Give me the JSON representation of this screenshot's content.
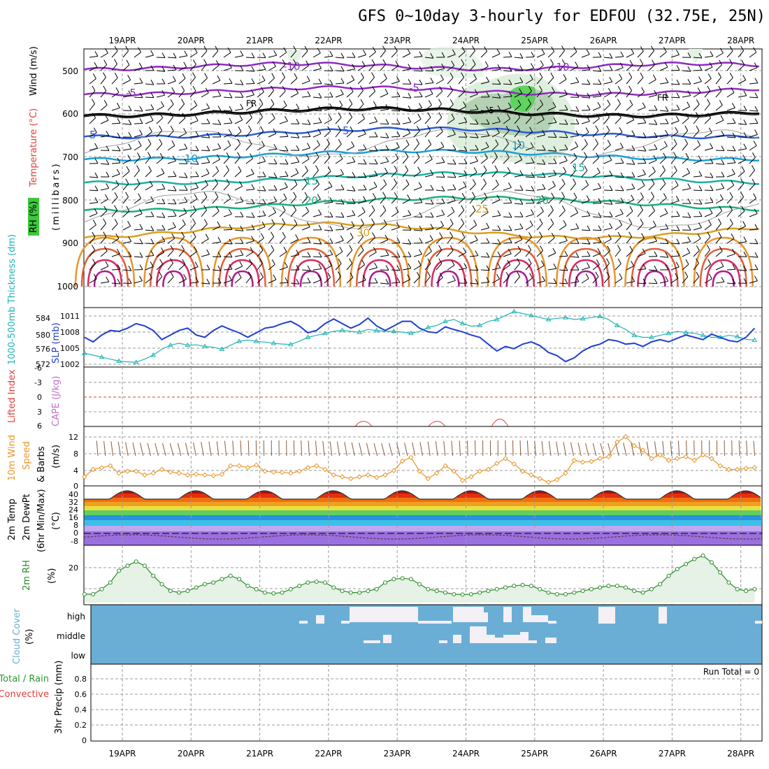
{
  "title": "GFS 0~10day 3-hourly for EDFOU (32.75E, 25N)",
  "days": [
    "19APR",
    "20APR",
    "21APR",
    "22APR",
    "23APR",
    "24APR",
    "25APR",
    "26APR",
    "27APR",
    "28APR"
  ],
  "colors": {
    "frame": "#000000",
    "grid": "#9a9a9a",
    "slp": "#1f3fd0",
    "thick": "#22b3b3",
    "wind10": "#e8962a",
    "rh": "#2a8a2a",
    "cloudBlue": "#6aaed6",
    "cloudWhite": "#f4f0f6"
  },
  "panels": {
    "upper": {
      "labels": {
        "rh": "RH (%)",
        "temp": "Temperature (°C)",
        "wind": "Wind (m/s)",
        "units": "(millibars)"
      },
      "yticks": [
        "500",
        "600",
        "700",
        "800",
        "900",
        "1000"
      ],
      "contour_labels": [
        "-10",
        "-10",
        "-5",
        "-5",
        "FR",
        "FR",
        "-5",
        "5",
        "5",
        "10",
        "10",
        "15",
        "15",
        "20",
        "20",
        "25",
        "30"
      ]
    },
    "slp": {
      "labels": {
        "thickness": "1000-500mb Thickness (dm)",
        "slp": "SLP (mb)"
      },
      "left_ticks": [
        "584",
        "580",
        "576",
        "572"
      ],
      "right_ticks": [
        "1011",
        "1008",
        "1005",
        "1002"
      ]
    },
    "cape": {
      "labels": {
        "li": "Lifted Index",
        "cape": "CAPE (J/kg)"
      },
      "ticks": [
        "-6",
        "-3",
        "0",
        "3",
        "6"
      ]
    },
    "wind10": {
      "labels": {
        "a": "10m Wind",
        "b": "Speed",
        "c": "& Barbs",
        "units": "(m/s)"
      },
      "ticks": [
        "12",
        "8",
        "4",
        "0"
      ]
    },
    "temp2m": {
      "labels": {
        "a": "2m Temp",
        "b": "2m DewPt",
        "c": "(6hr Min/Max)",
        "units": "(°C)"
      },
      "ticks": [
        "40",
        "32",
        "24",
        "16",
        "8",
        "0",
        "-8"
      ]
    },
    "rh2m": {
      "labels": {
        "a": "2m RH",
        "units": "(%)"
      },
      "ticks": [
        "20"
      ]
    },
    "cloud": {
      "labels": {
        "a": "Cloud Cover",
        "units": "(%)"
      },
      "levels": [
        "high",
        "middle",
        "low"
      ]
    },
    "precip": {
      "labels": {
        "a": "Total / Rain",
        "b": "Convective",
        "c": "3hr Precip (mm)"
      },
      "run_total": "Run Total = 0",
      "ticks": [
        "0.8",
        "0.6",
        "0.4",
        "0.2",
        "0"
      ]
    }
  },
  "chart_data": [
    {
      "type": "line",
      "name": "SLP",
      "ylabel": "SLP (mb)",
      "ylim": [
        1001,
        1014
      ],
      "x_start_day": 18.45,
      "step_hours": 3,
      "values": [
        1007.5,
        1006.5,
        1008,
        1009,
        1008.8,
        1009.5,
        1010.5,
        1010,
        1009,
        1007,
        1008,
        1009,
        1009.5,
        1008,
        1007.5,
        1009,
        1010,
        1009.2,
        1008.5,
        1007.5,
        1008.5,
        1009.5,
        1009.8,
        1010.5,
        1011,
        1010,
        1008.5,
        1009,
        1010.5,
        1011.5,
        1010.5,
        1009.5,
        1010.3,
        1011.7,
        1010,
        1009,
        1010,
        1011,
        1011,
        1009.5,
        1008.7,
        1008.5,
        1009.8,
        1009.2,
        1008.7,
        1008,
        1007.5,
        1006,
        1004.5,
        1005.5,
        1005,
        1006,
        1006.5,
        1005.7,
        1004.2,
        1003.5,
        1002.2,
        1003,
        1004.5,
        1005.5,
        1006,
        1007,
        1006.7,
        1006,
        1006.2,
        1005.5,
        1006.5,
        1007,
        1006.5,
        1007.3,
        1008,
        1007.5,
        1007,
        1008.2,
        1007.5,
        1006.8,
        1006.5,
        1007.5,
        1009.5,
        1009,
        1007.8,
        1007.4,
        1008,
        1008.6,
        1007.5,
        1007,
        1006.8,
        1007.5,
        1008.5,
        1009.2,
        1009.5
      ]
    },
    {
      "type": "line",
      "name": "1000-500mb Thickness",
      "ylabel": "Thickness (dm)",
      "ylim": [
        571,
        586
      ],
      "x_start_day": 18.45,
      "step_hours": 3,
      "values": [
        574.5,
        574,
        573.5,
        573,
        572.5,
        572.3,
        572.2,
        573,
        574,
        575.5,
        576.5,
        577,
        576.5,
        576.6,
        576.2,
        576,
        575.5,
        576.5,
        577.5,
        577.8,
        577.5,
        577.3,
        577,
        576.8,
        576.7,
        577.5,
        578.5,
        579,
        579.5,
        580,
        580.3,
        580,
        579.8,
        580.5,
        580.2,
        580,
        580,
        579.8,
        579.5,
        580,
        581,
        581.5,
        582.5,
        583,
        582,
        581.3,
        581.5,
        582.5,
        583,
        584,
        585,
        584.5,
        584,
        583.5,
        583,
        583.3,
        583.5,
        583,
        583.2,
        583.5,
        583.8,
        583,
        581.5,
        580.5,
        579,
        578.5,
        578.5,
        579,
        579.5,
        580,
        579.7,
        579.5,
        579,
        578.5,
        578.5,
        579,
        578.7,
        578,
        577.8,
        577.3,
        577,
        577.5,
        578.3,
        578.8,
        578.5,
        579,
        579.5,
        579.3,
        579,
        578.5,
        579,
        580,
        580.5,
        580.3,
        579.6,
        578.5,
        577.5,
        577,
        576.5
      ]
    },
    {
      "type": "line",
      "name": "10m Wind Speed",
      "ylabel": "(m/s)",
      "ylim": [
        0,
        14
      ],
      "x_start_day": 18.45,
      "step_hours": 3,
      "values": [
        2.5,
        4.5,
        5,
        5.5,
        3.5,
        4,
        4,
        3,
        3.5,
        4.5,
        3.8,
        3.5,
        3,
        3.2,
        3,
        2.8,
        3.2,
        5.5,
        5.5,
        5,
        5.7,
        4,
        3.8,
        3.7,
        3.5,
        4,
        5,
        5.5,
        4.5,
        3,
        2.5,
        2,
        2.5,
        3,
        2.3,
        3,
        4.2,
        6.8,
        7.8,
        4,
        2,
        3.5,
        5.5,
        4,
        1.5,
        2.5,
        4,
        4.5,
        6.2,
        7.5,
        6,
        4,
        3,
        2,
        1,
        1.7,
        3.5,
        7,
        6.5,
        6.7,
        7.5,
        8,
        12,
        13.5,
        11,
        9.8,
        7.5,
        8.5,
        7,
        7.5,
        8,
        7,
        8.5,
        7.5,
        5.5,
        4.5,
        4.5,
        4.8,
        5,
        4.5,
        4.5,
        5,
        5.2,
        4,
        4.5,
        5.5,
        5,
        4.5,
        3.5,
        3.5,
        3,
        2.5,
        3,
        2,
        1,
        2,
        2.5,
        2.5
      ]
    },
    {
      "type": "line",
      "name": "2m RH",
      "ylabel": "(%)",
      "ylim": [
        0,
        30
      ],
      "x_start_day": 18.45,
      "step_hours": 3,
      "values": [
        5,
        5,
        8,
        12,
        19,
        22,
        24.5,
        22,
        16,
        11,
        7,
        6,
        7,
        9,
        11,
        12,
        14,
        16,
        14,
        10,
        8,
        6,
        5.5,
        6,
        8,
        10,
        12,
        12.5,
        12,
        9,
        7,
        6,
        6,
        7,
        8,
        12,
        14,
        14.5,
        14,
        11,
        8,
        7,
        6,
        5,
        4.8,
        5,
        6,
        7,
        8,
        9,
        10,
        10.5,
        10,
        8,
        6,
        5,
        5,
        6,
        7,
        8,
        9,
        10,
        10,
        9,
        7,
        6,
        8,
        11,
        16,
        20,
        23,
        26,
        28,
        24,
        18,
        12,
        8,
        7,
        8,
        12,
        17,
        21,
        24,
        26,
        24,
        18,
        11,
        7,
        6,
        5.8,
        7,
        8,
        9,
        11,
        12,
        13,
        12,
        8,
        6,
        5,
        5,
        6,
        9,
        13,
        15,
        15,
        14,
        12
      ]
    }
  ]
}
